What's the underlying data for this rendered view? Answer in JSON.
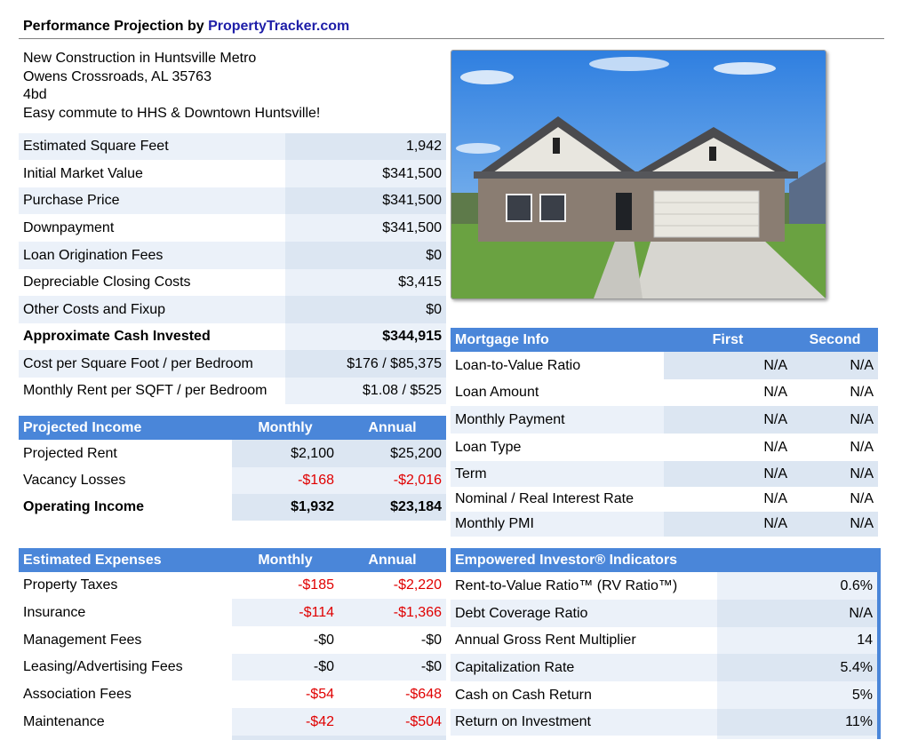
{
  "header": {
    "title_prefix": "Performance Projection by ",
    "brand": "PropertyTracker.com"
  },
  "description": {
    "line1": "New Construction in Huntsville Metro",
    "line2": "Owens Crossroads, AL 35763",
    "line3": "4bd",
    "line4": "Easy commute to HHS & Downtown Huntsville!"
  },
  "summary": [
    {
      "label": "Estimated Square Feet",
      "value": "1,942"
    },
    {
      "label": "Initial Market Value",
      "value": "$341,500"
    },
    {
      "label": "Purchase Price",
      "value": "$341,500"
    },
    {
      "label": "Downpayment",
      "value": "$341,500"
    },
    {
      "label": "Loan Origination Fees",
      "value": "$0"
    },
    {
      "label": "Depreciable Closing Costs",
      "value": "$3,415"
    },
    {
      "label": "Other Costs and Fixup",
      "value": "$0"
    },
    {
      "label": "Approximate Cash Invested",
      "value": "$344,915"
    },
    {
      "label": "Cost per Square Foot / per Bedroom",
      "value": "$176 / $85,375"
    },
    {
      "label": "Monthly Rent per SQFT / per Bedroom",
      "value": "$1.08 / $525"
    }
  ],
  "income": {
    "headers": [
      "Projected Income",
      "Monthly",
      "Annual"
    ],
    "rows": [
      {
        "label": "Projected Rent",
        "monthly": "$2,100",
        "annual": "$25,200"
      },
      {
        "label": "Vacancy Losses",
        "monthly": "-$168",
        "annual": "-$2,016"
      },
      {
        "label": "Operating Income",
        "monthly": "$1,932",
        "annual": "$23,184"
      }
    ]
  },
  "expenses": {
    "headers": [
      "Estimated Expenses",
      "Monthly",
      "Annual"
    ],
    "rows": [
      {
        "label": "Property Taxes",
        "monthly": "-$185",
        "annual": "-$2,220"
      },
      {
        "label": "Insurance",
        "monthly": "-$114",
        "annual": "-$1,366"
      },
      {
        "label": "Management Fees",
        "monthly": "-$0",
        "annual": "-$0"
      },
      {
        "label": "Leasing/Advertising Fees",
        "monthly": "-$0",
        "annual": "-$0"
      },
      {
        "label": "Association Fees",
        "monthly": "-$54",
        "annual": "-$648"
      },
      {
        "label": "Maintenance",
        "monthly": "-$42",
        "annual": "-$504"
      }
    ]
  },
  "mortgage": {
    "headers": [
      "Mortgage Info",
      "First",
      "Second"
    ],
    "rows": [
      {
        "label": "Loan-to-Value Ratio",
        "first": "N/A",
        "second": "N/A"
      },
      {
        "label": "Loan Amount",
        "first": "N/A",
        "second": "N/A"
      },
      {
        "label": "Monthly Payment",
        "first": "N/A",
        "second": "N/A"
      },
      {
        "label": "Loan Type",
        "first": "N/A",
        "second": "N/A"
      },
      {
        "label": "Term",
        "first": "N/A",
        "second": "N/A"
      },
      {
        "label": "Nominal / Real Interest Rate",
        "first": "N/A",
        "second": "N/A"
      },
      {
        "label": "Monthly PMI",
        "first": "N/A",
        "second": "N/A"
      }
    ]
  },
  "indicators": {
    "header": "Empowered Investor® Indicators",
    "rows": [
      {
        "label": "Rent-to-Value Ratio™ (RV Ratio™)",
        "value": "0.6%"
      },
      {
        "label": "Debt Coverage Ratio",
        "value": "N/A"
      },
      {
        "label": "Annual Gross Rent Multiplier",
        "value": "14"
      },
      {
        "label": "Capitalization Rate",
        "value": "5.4%"
      },
      {
        "label": "Cash on Cash Return",
        "value": "5%"
      },
      {
        "label": "Return on Investment",
        "value": "11%"
      }
    ]
  },
  "colors": {
    "header_blue": "#4a86d9",
    "brand_blue": "#1e1ea8",
    "negative_red": "#e00000",
    "row_light": "#dce6f2"
  },
  "icons": {
    "photo": "house-photo"
  }
}
